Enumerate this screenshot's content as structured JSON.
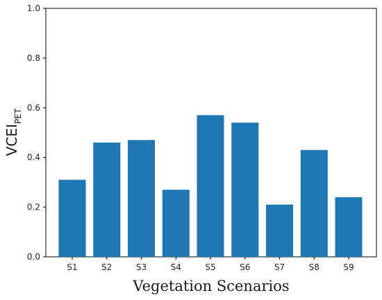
{
  "chart_data": {
    "type": "bar",
    "categories": [
      "S1",
      "S2",
      "S3",
      "S4",
      "S5",
      "S6",
      "S7",
      "S8",
      "S9"
    ],
    "values": [
      0.31,
      0.46,
      0.47,
      0.27,
      0.57,
      0.54,
      0.21,
      0.43,
      0.24
    ],
    "title": "",
    "xlabel": "Vegetation Scenarios",
    "ylabel": "VCEI",
    "ylabel_subscript": "PET",
    "ylim": [
      0,
      1.0
    ],
    "yticks": [
      "0.0",
      "0.2",
      "0.4",
      "0.6",
      "0.8",
      "1.0"
    ],
    "grid": false,
    "bar_color": "#1f77b4"
  }
}
